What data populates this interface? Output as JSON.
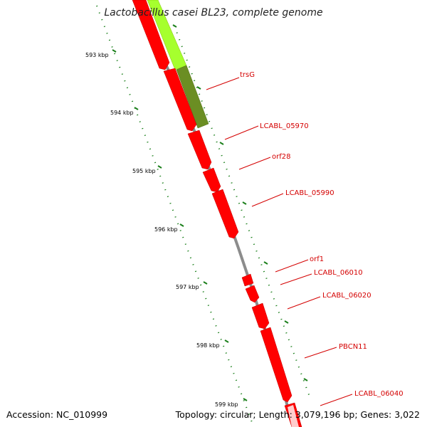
{
  "title": "Lactobacillus casei BL23, complete genome",
  "footer": {
    "accession": "Accession: NC_010999",
    "topology": "Topology: circular; Length: 3,079,196 bp; Genes: 3,022"
  },
  "colors": {
    "backbone": "#8c8c8c",
    "cds": "#ff0000",
    "cds_dark": "#c00000",
    "rna_light": "#a6ff2e",
    "rna_dark": "#6b8e23",
    "gene_label": "#d40000",
    "leader_line": "#d40000",
    "tick": "#1a7f1a"
  },
  "ruler": {
    "ticks": [
      {
        "label": "593 kbp"
      },
      {
        "label": "594 kbp"
      },
      {
        "label": "595 kbp"
      },
      {
        "label": "596 kbp"
      },
      {
        "label": "597 kbp"
      },
      {
        "label": "598 kbp"
      },
      {
        "label": "599 kbp"
      }
    ]
  },
  "genes": [
    {
      "label": "trsG"
    },
    {
      "label": "LCABL_05970"
    },
    {
      "label": "orf28"
    },
    {
      "label": "LCABL_05990"
    },
    {
      "label": "orf1"
    },
    {
      "label": "LCABL_06010"
    },
    {
      "label": "LCABL_06020"
    },
    {
      "label": "PBCN11"
    },
    {
      "label": "LCABL_06040"
    }
  ]
}
